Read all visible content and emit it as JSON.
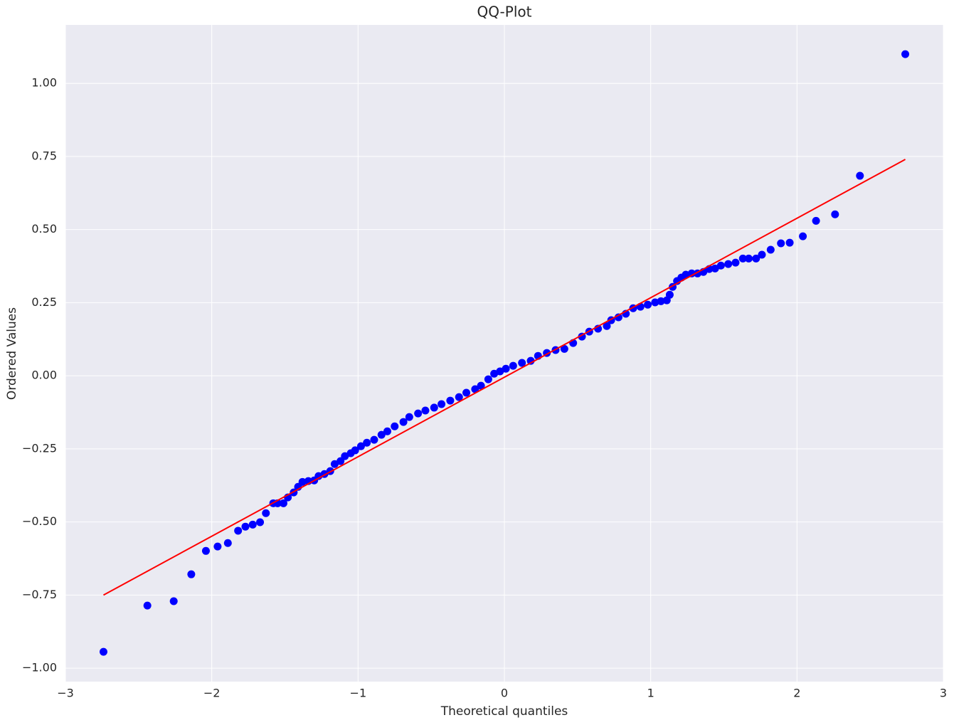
{
  "chart_data": {
    "type": "scatter",
    "title": "QQ-Plot",
    "x_label": "Theoretical quantiles",
    "y_label": "Ordered Values",
    "color": "#0000ff",
    "x": [
      -2.74,
      -2.44,
      -2.26,
      -2.14,
      -2.04,
      -1.96,
      -1.89,
      -1.82,
      -1.77,
      -1.72,
      -1.67,
      -1.63,
      -1.58,
      -1.55,
      -1.51,
      -1.48,
      -1.44,
      -1.41,
      -1.38,
      -1.34,
      -1.3,
      -1.27,
      -1.23,
      -1.19,
      -1.16,
      -1.12,
      -1.09,
      -1.05,
      -1.02,
      -0.98,
      -0.94,
      -0.89,
      -0.84,
      -0.8,
      -0.75,
      -0.69,
      -0.65,
      -0.59,
      -0.54,
      -0.48,
      -0.43,
      -0.37,
      -0.31,
      -0.26,
      -0.2,
      -0.16,
      -0.11,
      -0.07,
      -0.03,
      0.01,
      0.06,
      0.12,
      0.18,
      0.23,
      0.29,
      0.35,
      0.41,
      0.47,
      0.53,
      0.58,
      0.64,
      0.7,
      0.73,
      0.78,
      0.83,
      0.88,
      0.93,
      0.98,
      1.03,
      1.07,
      1.11,
      1.13,
      1.15,
      1.18,
      1.21,
      1.24,
      1.28,
      1.32,
      1.36,
      1.4,
      1.44,
      1.48,
      1.53,
      1.58,
      1.63,
      1.67,
      1.72,
      1.76,
      1.82,
      1.89,
      1.95,
      2.04,
      2.13,
      2.26,
      2.43,
      2.74
    ],
    "values": [
      -0.944,
      -0.786,
      -0.771,
      -0.679,
      -0.599,
      -0.584,
      -0.572,
      -0.53,
      -0.516,
      -0.509,
      -0.501,
      -0.47,
      -0.436,
      -0.436,
      -0.436,
      -0.416,
      -0.399,
      -0.38,
      -0.363,
      -0.36,
      -0.358,
      -0.343,
      -0.336,
      -0.326,
      -0.302,
      -0.292,
      -0.275,
      -0.265,
      -0.255,
      -0.241,
      -0.229,
      -0.219,
      -0.202,
      -0.19,
      -0.173,
      -0.158,
      -0.141,
      -0.129,
      -0.119,
      -0.109,
      -0.097,
      -0.085,
      -0.073,
      -0.058,
      -0.046,
      -0.034,
      -0.012,
      0.007,
      0.015,
      0.024,
      0.034,
      0.044,
      0.051,
      0.068,
      0.078,
      0.088,
      0.092,
      0.112,
      0.134,
      0.151,
      0.161,
      0.17,
      0.19,
      0.2,
      0.212,
      0.231,
      0.236,
      0.243,
      0.251,
      0.255,
      0.258,
      0.277,
      0.304,
      0.324,
      0.336,
      0.346,
      0.35,
      0.35,
      0.355,
      0.365,
      0.367,
      0.377,
      0.382,
      0.387,
      0.401,
      0.401,
      0.401,
      0.414,
      0.431,
      0.453,
      0.455,
      0.477,
      0.53,
      0.552,
      0.684,
      1.1
    ],
    "fit_line": {
      "x": [
        -2.74,
        2.74
      ],
      "values": [
        -0.75,
        0.74
      ],
      "color": "#ff0000"
    },
    "xlim": [
      -3,
      3
    ],
    "ylim": [
      -1.046,
      1.2
    ],
    "xticks": [
      {
        "value": -3,
        "label": "−3"
      },
      {
        "value": -2,
        "label": "−2"
      },
      {
        "value": -1,
        "label": "−1"
      },
      0,
      1,
      2,
      3
    ],
    "yticks": [
      {
        "value": -1,
        "label": "−1.00"
      },
      {
        "value": -0.75,
        "label": "−0.75"
      },
      {
        "value": -0.5,
        "label": "−0.50"
      },
      {
        "value": -0.25,
        "label": "−0.25"
      },
      {
        "value": 0,
        "label": "0.00"
      },
      {
        "value": 0.25,
        "label": "0.25"
      },
      {
        "value": 0.5,
        "label": "0.50"
      },
      {
        "value": 0.75,
        "label": "0.75"
      },
      {
        "value": 1,
        "label": "1.00"
      }
    ],
    "grid": true
  }
}
